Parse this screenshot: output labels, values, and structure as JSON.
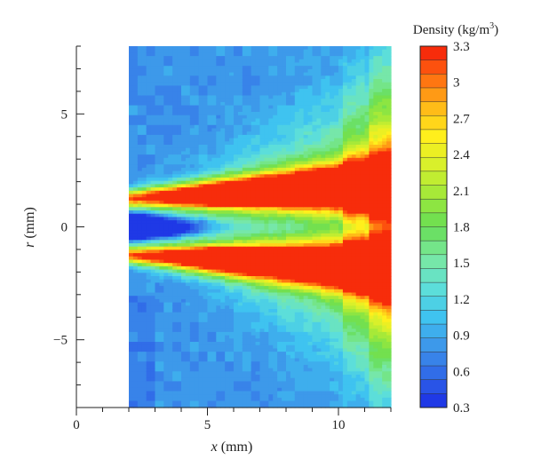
{
  "chart_data": {
    "type": "heatmap",
    "title": "",
    "xlabel_var": "x",
    "xlabel_unit": "(mm)",
    "ylabel_var": "r",
    "ylabel_unit": "(mm)",
    "xlim": [
      0,
      12
    ],
    "ylim": [
      -8,
      8
    ],
    "data_x_range": [
      2,
      12
    ],
    "x_ticks": [
      0,
      5,
      10
    ],
    "y_ticks": [
      5,
      0,
      -5
    ],
    "x_tick_labels": [
      "0",
      "5",
      "10"
    ],
    "y_tick_labels": [
      "5",
      "0",
      "−5"
    ],
    "colorbar": {
      "title_prefix": "Density (kg/m",
      "title_sup": "3",
      "title_suffix": ")",
      "min": 0.3,
      "max": 3.3,
      "levels": 26,
      "tick_values": [
        3.3,
        3,
        2.7,
        2.4,
        2.1,
        1.8,
        1.5,
        1.2,
        0.9,
        0.6,
        0.3
      ],
      "tick_labels": [
        "3.3",
        "3",
        "2.7",
        "2.4",
        "2.1",
        "1.8",
        "1.5",
        "1.2",
        "0.9",
        "0.6",
        "0.3"
      ]
    },
    "features": {
      "core_low_density": 0.3,
      "shock_layer_peak": 3.3,
      "shock_layer_r": [
        1.3,
        -1.4
      ],
      "ambient": 0.8
    },
    "colors": [
      "#1a2be6",
      "#2f66e8",
      "#3d95ea",
      "#3fc3f0",
      "#5ee0d8",
      "#7ae8a0",
      "#66dd55",
      "#9fe83a",
      "#d6f02c",
      "#ffef1c",
      "#ffb818",
      "#ff6a10",
      "#f51a0a"
    ]
  }
}
